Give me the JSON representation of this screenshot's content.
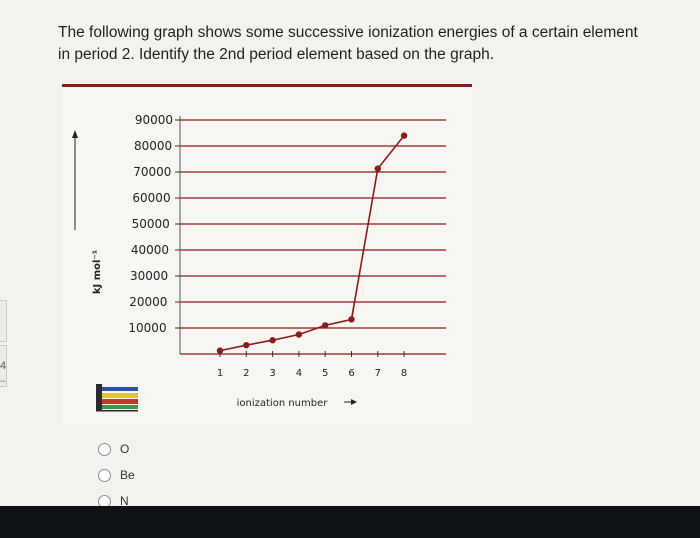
{
  "question": {
    "line1": "The following graph shows some successive ionization energies of a certain element",
    "line2": "in period 2. Identify the 2nd period element based on the graph."
  },
  "chart_data": {
    "type": "line",
    "title": "",
    "ylabel": "kJ mol⁻¹",
    "xlabel": "ionization number",
    "ylim": [
      0,
      90000
    ],
    "y_ticks": [
      "90000",
      "80000",
      "70000",
      "60000",
      "50000",
      "40000",
      "30000",
      "20000",
      "10000"
    ],
    "x_ticks": [
      "1",
      "2",
      "3",
      "4",
      "5",
      "6",
      "7",
      "8"
    ],
    "grid": true,
    "series": [
      {
        "x": [
          1,
          2,
          3,
          4,
          5,
          6,
          7,
          8
        ],
        "values": [
          1300,
          3400,
          5300,
          7500,
          11000,
          13300,
          71300,
          84000
        ]
      }
    ],
    "colors": {
      "line": "#8b1a1a",
      "grid": "#8b1a1a",
      "marker": "#8b1a1a"
    }
  },
  "options": [
    {
      "label": "O"
    },
    {
      "label": "Be"
    },
    {
      "label": "N"
    }
  ]
}
